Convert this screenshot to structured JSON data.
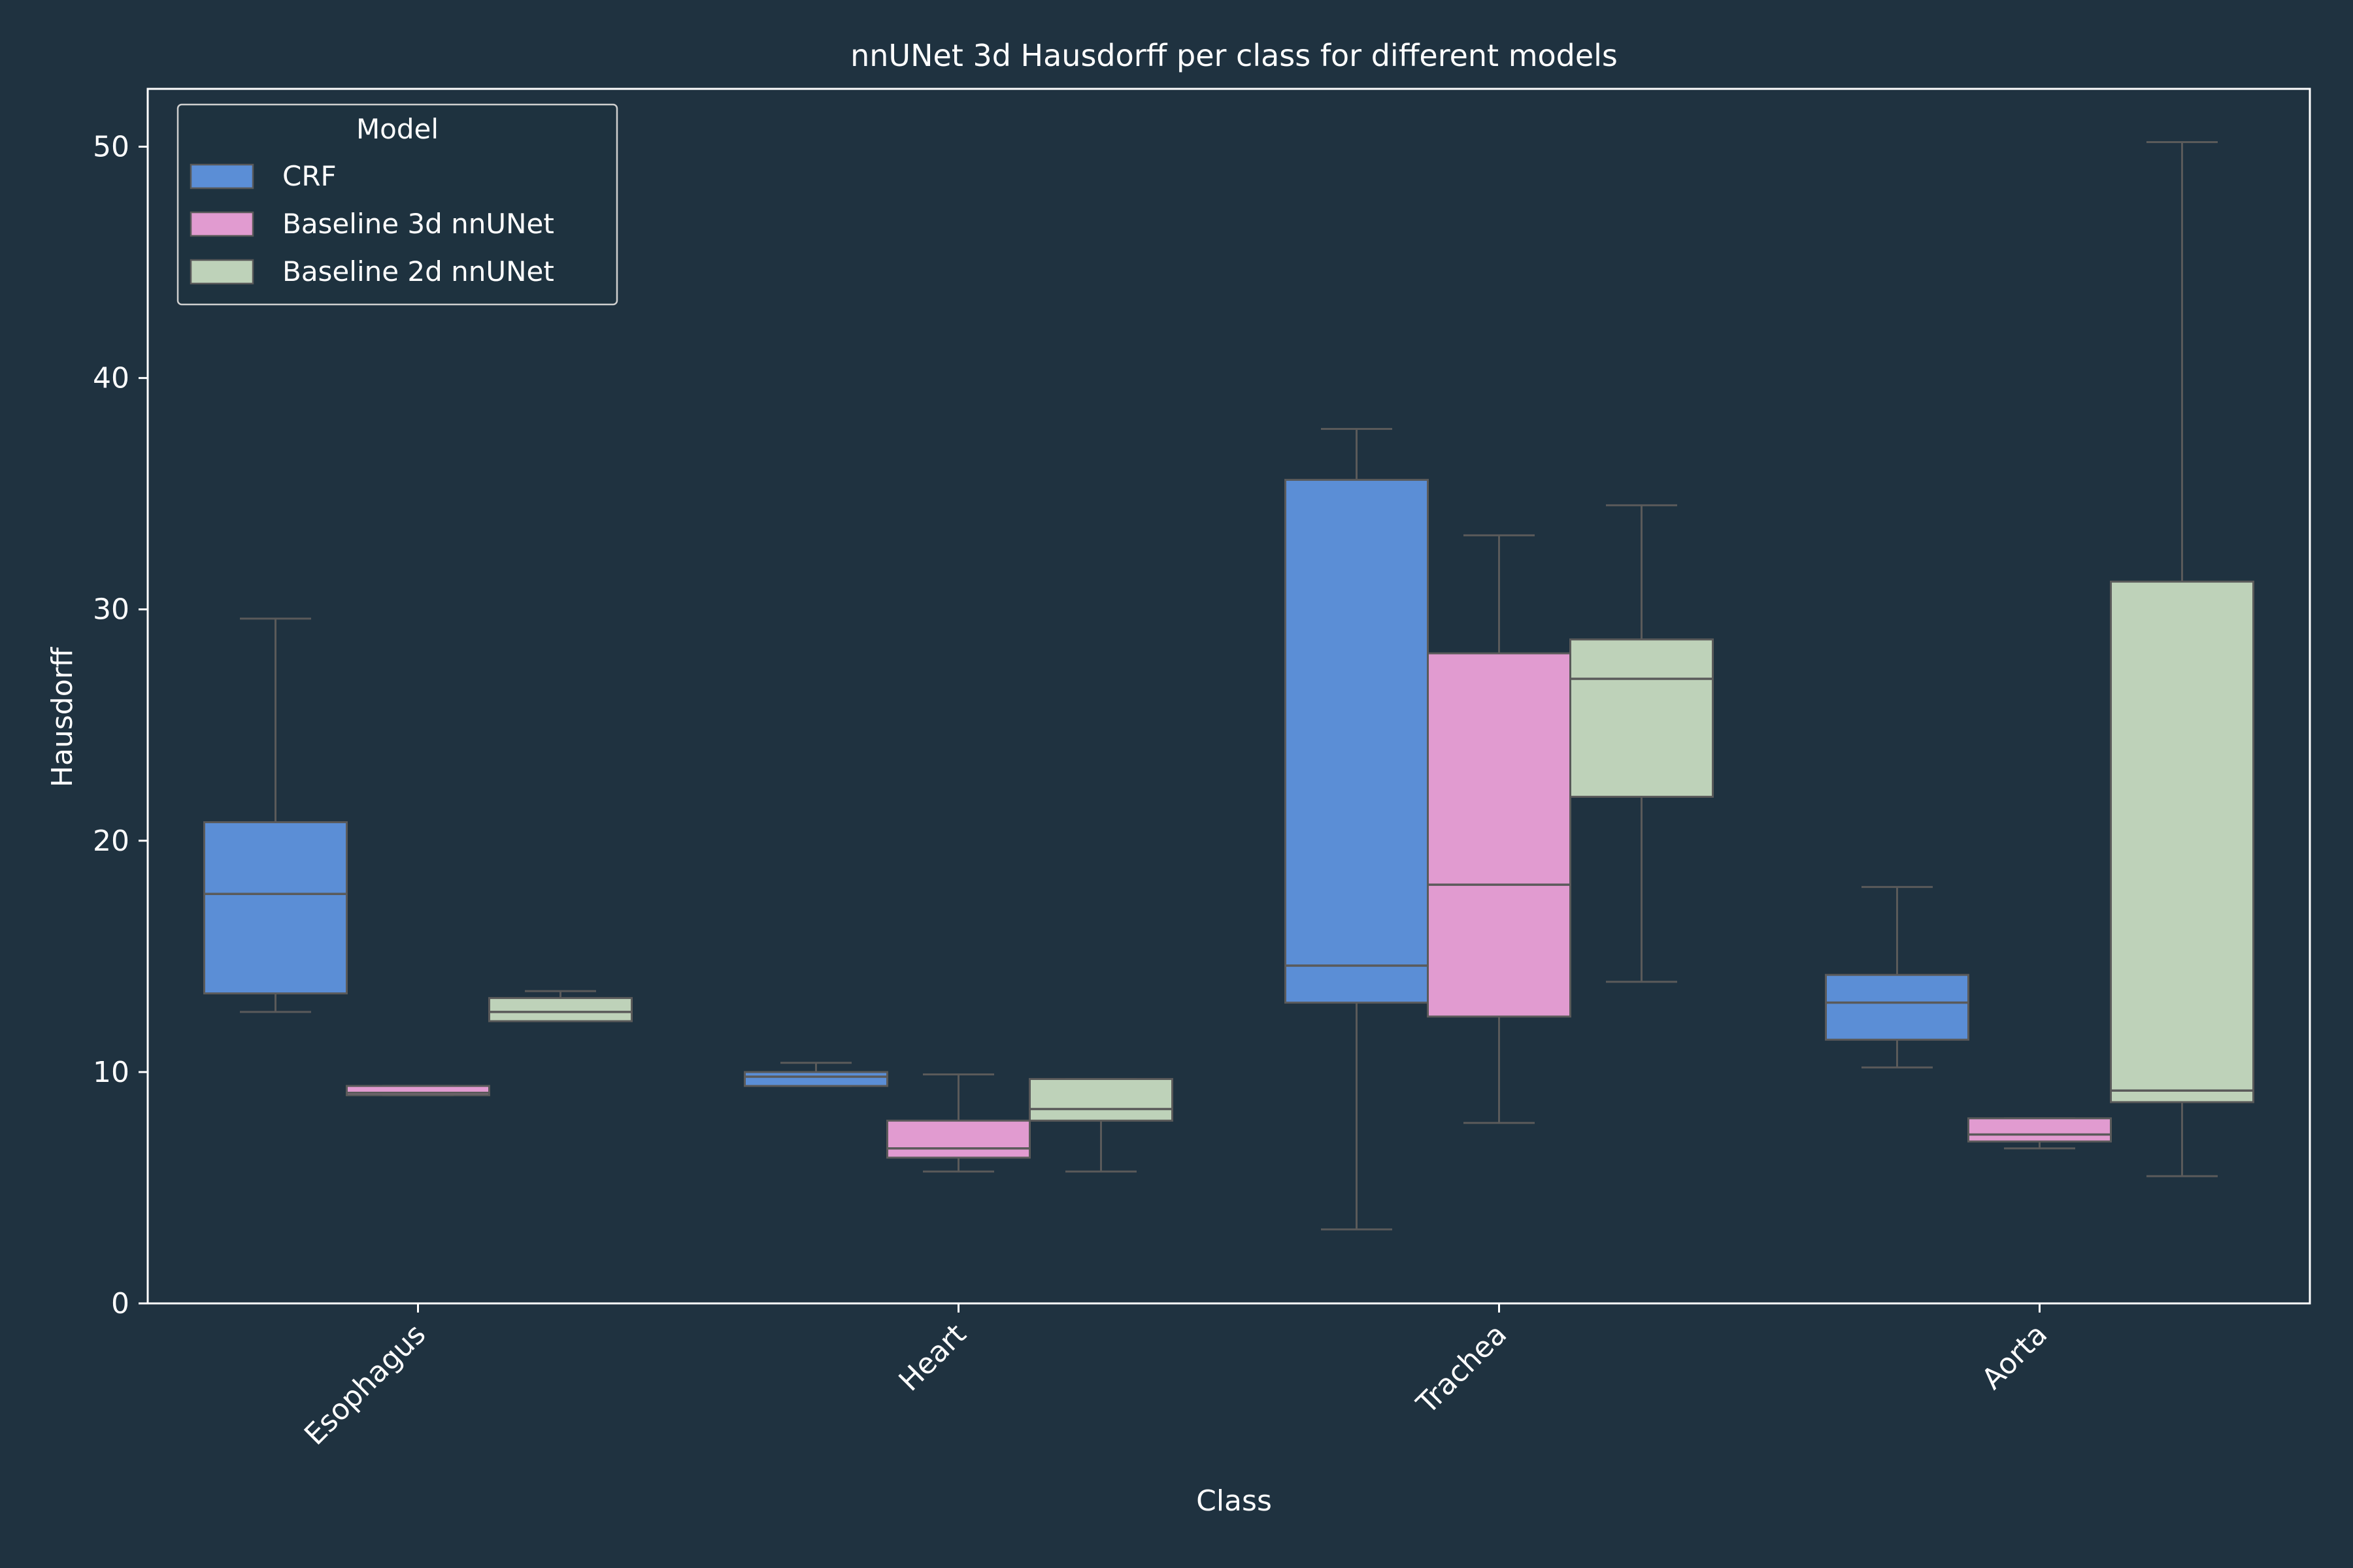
{
  "chart_data": {
    "type": "box",
    "title": "nnUNet 3d Hausdorff per class for different models",
    "xlabel": "Class",
    "ylabel": "Hausdorff",
    "ylim": [
      0,
      52.5
    ],
    "yticks": [
      0,
      10,
      20,
      30,
      40,
      50
    ],
    "grid": false,
    "categories": [
      "Esophagus",
      "Heart",
      "Trachea",
      "Aorta"
    ],
    "legend": {
      "title": "Model",
      "position": "top-left"
    },
    "colors": {
      "background": "#1f3240",
      "text": "#ffffff",
      "whisker": "#5a5a5a"
    },
    "series": [
      {
        "name": "CRF",
        "color": "#5b8ed6",
        "boxes": [
          {
            "category": "Esophagus",
            "whislo": 12.6,
            "q1": 13.4,
            "med": 17.7,
            "q3": 20.8,
            "whishi": 29.6
          },
          {
            "category": "Heart",
            "whislo": 9.4,
            "q1": 9.4,
            "med": 9.8,
            "q3": 10.0,
            "whishi": 10.4
          },
          {
            "category": "Trachea",
            "whislo": 3.2,
            "q1": 13.0,
            "med": 14.6,
            "q3": 35.6,
            "whishi": 37.8
          },
          {
            "category": "Aorta",
            "whislo": 10.2,
            "q1": 11.4,
            "med": 13.0,
            "q3": 14.2,
            "whishi": 18.0
          }
        ]
      },
      {
        "name": "Baseline 3d nnUNet",
        "color": "#e19bd0",
        "boxes": [
          {
            "category": "Esophagus",
            "whislo": 9.0,
            "q1": 9.0,
            "med": 9.1,
            "q3": 9.4,
            "whishi": 9.4
          },
          {
            "category": "Heart",
            "whislo": 5.7,
            "q1": 6.3,
            "med": 6.7,
            "q3": 7.9,
            "whishi": 9.9
          },
          {
            "category": "Trachea",
            "whislo": 7.8,
            "q1": 12.4,
            "med": 18.1,
            "q3": 28.1,
            "whishi": 33.2
          },
          {
            "category": "Aorta",
            "whislo": 6.7,
            "q1": 7.0,
            "med": 7.3,
            "q3": 8.0,
            "whishi": 8.0
          }
        ]
      },
      {
        "name": "Baseline 2d nnUNet",
        "color": "#bed2b9",
        "boxes": [
          {
            "category": "Esophagus",
            "whislo": 12.2,
            "q1": 12.2,
            "med": 12.6,
            "q3": 13.2,
            "whishi": 13.5
          },
          {
            "category": "Heart",
            "whislo": 5.7,
            "q1": 7.9,
            "med": 8.4,
            "q3": 9.7,
            "whishi": 9.7
          },
          {
            "category": "Trachea",
            "whislo": 13.9,
            "q1": 21.9,
            "med": 27.0,
            "q3": 28.7,
            "whishi": 34.5
          },
          {
            "category": "Aorta",
            "whislo": 5.5,
            "q1": 8.7,
            "med": 9.2,
            "q3": 31.2,
            "whishi": 50.2
          }
        ]
      }
    ]
  }
}
